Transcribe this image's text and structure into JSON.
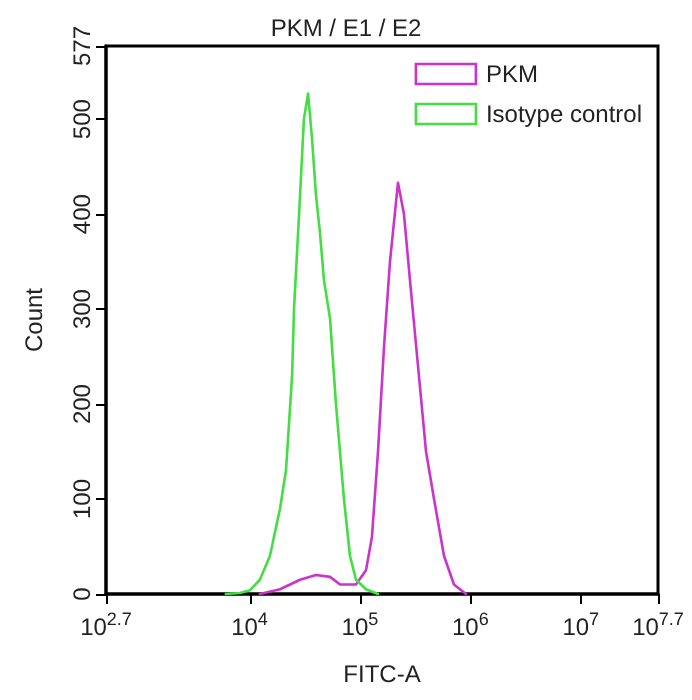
{
  "chart_data": {
    "type": "line",
    "title": "PKM / E1 / E2",
    "xlabel": "FITC-A",
    "ylabel": "Count",
    "log": "x",
    "grid": false,
    "legend": "top right",
    "marker": "none",
    "line_style": "solid",
    "xlim": [
      501.187,
      50118723
    ],
    "ylim": [
      0,
      577
    ],
    "xticks": [
      {
        "value": 501.187,
        "label": "10$^{2.7}$"
      },
      {
        "value": 10000,
        "label": "10$^{4}$"
      },
      {
        "value": 100000,
        "label": "10$^{5}$"
      },
      {
        "value": 1000000,
        "label": "10$^{6}$"
      },
      {
        "value": 10000000,
        "label": "10$^{7}$"
      },
      {
        "value": 50118723,
        "label": "10$^{7.7}$"
      }
    ],
    "yticks": [
      0,
      100,
      200,
      300,
      400,
      500,
      577
    ],
    "series": [
      {
        "name": "PKM",
        "color": "#cc33cc",
        "x": [
          12400,
          18900,
          28700,
          40000,
          53600,
          66100,
          92100,
          113500,
          128500,
          145800,
          165200,
          187200,
          221100,
          250600,
          284300,
          335900,
          397000,
          469000,
          578000,
          711000,
          914000
        ],
        "values": [
          0,
          5,
          15,
          20,
          18,
          10,
          10,
          25,
          60,
          150,
          260,
          350,
          433,
          400,
          330,
          240,
          150,
          100,
          40,
          10,
          0
        ]
      },
      {
        "name": "Isotype control",
        "color": "#44dd44",
        "x": [
          6100,
          8200,
          10100,
          12400,
          15300,
          18900,
          21400,
          24300,
          25300,
          28700,
          31100,
          33900,
          36800,
          40000,
          43500,
          47300,
          53600,
          60700,
          71700,
          81300,
          92100,
          113500,
          145800
        ],
        "values": [
          0,
          1,
          4,
          15,
          40,
          90,
          130,
          230,
          300,
          420,
          500,
          527,
          480,
          420,
          380,
          330,
          290,
          200,
          100,
          40,
          15,
          5,
          0
        ]
      }
    ]
  }
}
